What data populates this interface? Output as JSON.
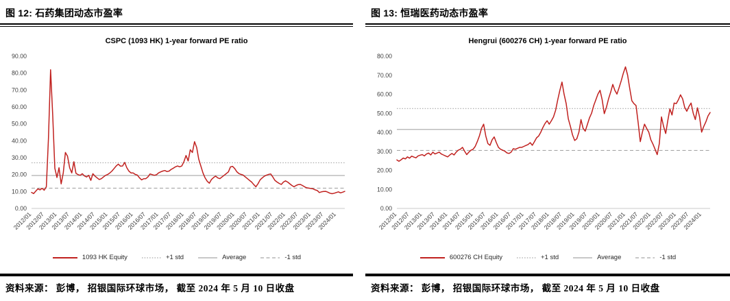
{
  "panels": [
    {
      "header": "图 12: 石药集团动态市盈率",
      "chart_title": "CSPC (1093 HK) 1-year forward PE ratio",
      "source": "资料来源： 彭博， 招银国际环球市场， 截至 2024 年 5 月 10 日收盘"
    },
    {
      "header": "图 13: 恒瑞医药动态市盈率",
      "chart_title": "Hengrui (600276 CH) 1-year forward PE ratio",
      "source": "资料来源： 彭博， 招银国际环球市场， 截至 2024 年 5 月 10 日收盘"
    }
  ],
  "colors": {
    "series_red": "#C0201E",
    "reference_gray": "#A6A6A6",
    "zero_axis": "#C9C9C9",
    "tick_text": "#404040"
  },
  "chart_data": [
    {
      "type": "line",
      "title": "CSPC (1093 HK) 1-year forward PE ratio",
      "x_frequency": "monthly",
      "x_range": [
        "2012/01",
        "2024/05"
      ],
      "x_tick_labels": [
        "2012/01",
        "2012/07",
        "2013/01",
        "2013/07",
        "2014/01",
        "2014/07",
        "2015/01",
        "2015/07",
        "2016/01",
        "2016/07",
        "2017/01",
        "2017/07",
        "2018/01",
        "2018/07",
        "2019/01",
        "2019/07",
        "2020/01",
        "2020/07",
        "2021/01",
        "2021/07",
        "2022/01",
        "2022/07",
        "2023/01",
        "2023/07",
        "2024/01"
      ],
      "ylim": [
        0,
        90
      ],
      "y_step": 10,
      "grid": false,
      "legend_position": "bottom",
      "series": [
        {
          "name": "1093 HK Equity",
          "color": "#C0201E",
          "values": [
            9.5,
            8.8,
            10.2,
            11.6,
            11.0,
            11.9,
            10.8,
            12.8,
            41.5,
            82.0,
            55.2,
            23.8,
            18.3,
            24.1,
            14.5,
            21.0,
            33.1,
            30.9,
            24.1,
            21.0,
            27.6,
            20.8,
            20.0,
            19.6,
            20.5,
            19.2,
            18.6,
            19.6,
            16.6,
            20.5,
            19.1,
            18.1,
            17.1,
            17.6,
            18.6,
            19.6,
            20.1,
            21.0,
            22.1,
            23.6,
            25.1,
            26.2,
            25.0,
            25.1,
            27.2,
            24.1,
            22.1,
            21.0,
            21.0,
            20.1,
            19.7,
            18.1,
            16.9,
            17.6,
            17.6,
            18.6,
            20.4,
            20.0,
            19.6,
            19.9,
            21.0,
            21.6,
            22.1,
            22.4,
            21.8,
            22.1,
            23.1,
            23.8,
            24.6,
            25.1,
            24.6,
            25.1,
            27.6,
            31.3,
            28.1,
            34.7,
            33.1,
            39.5,
            36.1,
            29.2,
            25.1,
            21.0,
            18.1,
            16.1,
            14.9,
            17.1,
            18.3,
            19.1,
            18.1,
            17.6,
            18.6,
            19.6,
            20.6,
            21.6,
            24.6,
            24.9,
            23.6,
            21.7,
            20.6,
            20.1,
            19.7,
            18.6,
            17.6,
            16.6,
            15.6,
            14.1,
            12.8,
            14.6,
            16.9,
            18.1,
            19.1,
            19.7,
            20.1,
            20.4,
            18.6,
            16.6,
            15.6,
            14.8,
            14.2,
            15.6,
            16.3,
            15.6,
            14.6,
            13.6,
            12.8,
            13.6,
            14.1,
            14.2,
            13.6,
            12.8,
            12.2,
            12.0,
            11.8,
            11.6,
            11.0,
            10.6,
            9.4,
            9.8,
            10.0,
            10.1,
            9.6,
            9.0,
            8.7,
            9.0,
            9.4,
            9.8,
            9.2,
            9.6,
            10.1
          ]
        }
      ],
      "reference_lines": [
        {
          "name": "+1 std",
          "value": 27.0,
          "style": "dotted",
          "color": "#A6A6A6"
        },
        {
          "name": "Average",
          "value": 19.5,
          "style": "solid",
          "color": "#A6A6A6"
        },
        {
          "name": "-1 std",
          "value": 12.0,
          "style": "dashed",
          "color": "#A6A6A6"
        }
      ],
      "legend": [
        {
          "label": "1093 HK Equity",
          "color": "#C0201E",
          "style": "solid"
        },
        {
          "label": "+1 std",
          "color": "#A6A6A6",
          "style": "dotted"
        },
        {
          "label": "Average",
          "color": "#A6A6A6",
          "style": "solid"
        },
        {
          "label": "-1 std",
          "color": "#A6A6A6",
          "style": "dashed"
        }
      ]
    },
    {
      "type": "line",
      "title": "Hengrui (600276 CH) 1-year forward PE ratio",
      "x_frequency": "monthly",
      "x_range": [
        "2012/01",
        "2024/05"
      ],
      "x_tick_labels": [
        "2012/01",
        "2012/07",
        "2013/01",
        "2013/07",
        "2014/01",
        "2014/07",
        "2015/01",
        "2015/07",
        "2016/01",
        "2016/07",
        "2017/01",
        "2017/07",
        "2018/01",
        "2018/07",
        "2019/01",
        "2019/07",
        "2020/01",
        "2020/07",
        "2021/01",
        "2021/07",
        "2022/01",
        "2022/07",
        "2023/01",
        "2023/07",
        "2024/01"
      ],
      "ylim": [
        0,
        80
      ],
      "y_step": 10,
      "grid": false,
      "legend_position": "bottom",
      "series": [
        {
          "name": "600276 CH Equity",
          "color": "#C0201E",
          "values": [
            25.5,
            24.8,
            25.6,
            26.5,
            26.0,
            27.1,
            26.4,
            27.5,
            27.0,
            26.6,
            27.6,
            28.0,
            28.3,
            27.6,
            28.6,
            29.1,
            28.1,
            29.6,
            28.6,
            29.1,
            29.6,
            28.6,
            28.1,
            27.6,
            27.1,
            28.1,
            28.9,
            28.1,
            29.6,
            30.6,
            31.1,
            32.1,
            30.1,
            28.3,
            29.6,
            30.6,
            31.1,
            32.6,
            35.1,
            38.1,
            42.1,
            44.3,
            38.1,
            34.1,
            33.2,
            36.1,
            37.6,
            34.6,
            32.1,
            31.1,
            30.6,
            30.1,
            29.2,
            28.9,
            29.6,
            31.4,
            31.1,
            31.6,
            32.1,
            32.1,
            32.6,
            33.1,
            33.6,
            34.6,
            33.2,
            35.1,
            37.1,
            38.1,
            40.1,
            42.6,
            44.6,
            46.1,
            44.3,
            46.1,
            48.1,
            51.6,
            57.1,
            62.1,
            66.4,
            60.1,
            55.1,
            47.1,
            43.1,
            38.6,
            35.7,
            36.6,
            40.1,
            46.7,
            42.1,
            40.6,
            44.1,
            47.6,
            50.1,
            54.1,
            57.1,
            60.1,
            62.1,
            57.1,
            49.8,
            53.1,
            57.6,
            61.1,
            65.2,
            62.1,
            60.1,
            63.5,
            67.1,
            71.1,
            74.4,
            70.1,
            63.1,
            56.6,
            55.1,
            54.1,
            45.1,
            35.1,
            40.1,
            44.3,
            42.1,
            40.1,
            36.1,
            33.8,
            31.1,
            28.3,
            34.1,
            48.1,
            43.1,
            39.4,
            46.1,
            52.3,
            49.1,
            55.4,
            55.1,
            57.1,
            59.7,
            57.6,
            53.1,
            51.1,
            53.6,
            55.4,
            50.1,
            46.7,
            52.9,
            48.1,
            40.1,
            43.1,
            45.5,
            48.6,
            50.4
          ]
        }
      ],
      "reference_lines": [
        {
          "name": "+1 std",
          "value": 52.5,
          "style": "dotted",
          "color": "#A6A6A6"
        },
        {
          "name": "Average",
          "value": 41.5,
          "style": "solid",
          "color": "#A6A6A6"
        },
        {
          "name": "-1 std",
          "value": 30.5,
          "style": "dashed",
          "color": "#A6A6A6"
        }
      ],
      "legend": [
        {
          "label": "600276 CH Equity",
          "color": "#C0201E",
          "style": "solid"
        },
        {
          "label": "+1 std",
          "color": "#A6A6A6",
          "style": "dotted"
        },
        {
          "label": "Average",
          "color": "#A6A6A6",
          "style": "solid"
        },
        {
          "label": "-1 std",
          "color": "#A6A6A6",
          "style": "dashed"
        }
      ]
    }
  ]
}
